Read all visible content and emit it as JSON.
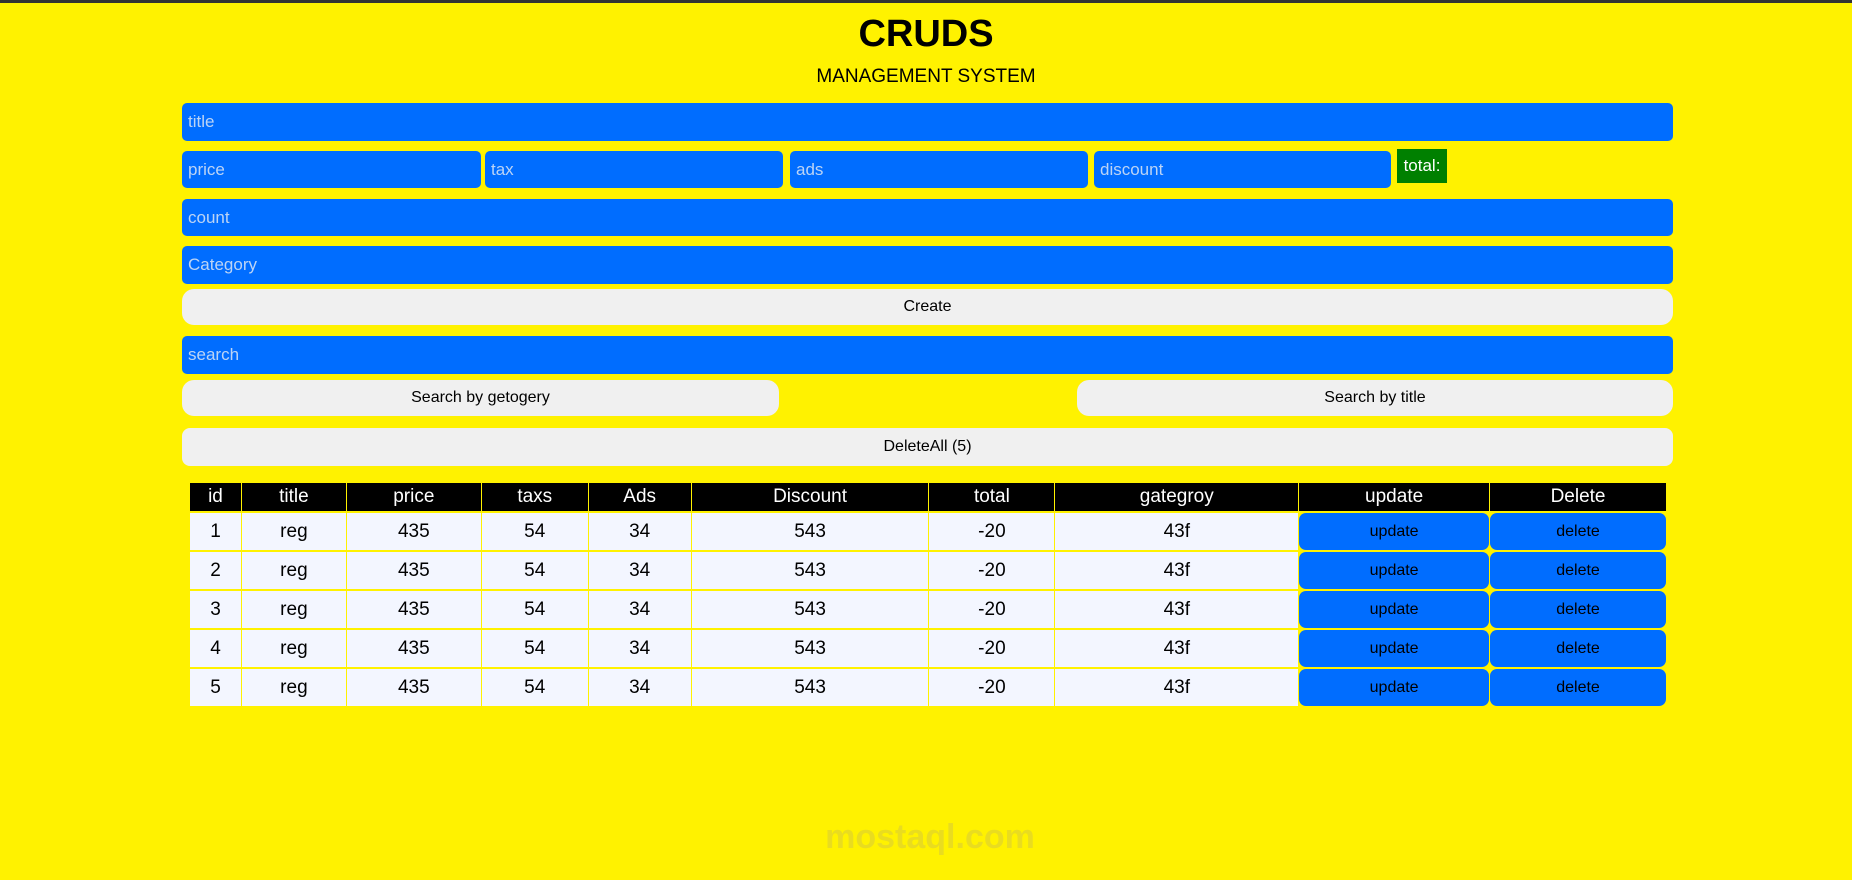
{
  "header": {
    "title": "CRUDS",
    "subtitle": "MANAGEMENT SYSTEM"
  },
  "form": {
    "title_placeholder": "title",
    "price_placeholder": "price",
    "tax_placeholder": "tax",
    "ads_placeholder": "ads",
    "discount_placeholder": "discount",
    "total_label": "total:",
    "count_placeholder": "count",
    "category_placeholder": "Category",
    "create_label": "Create"
  },
  "search": {
    "placeholder": "search",
    "by_category_label": "Search by getogery",
    "by_title_label": "Search by title"
  },
  "delete_all_label": "DeleteAll (5)",
  "table": {
    "headers": [
      "id",
      "title",
      "price",
      "taxs",
      "Ads",
      "Discount",
      "total",
      "gategroy",
      "update",
      "Delete"
    ],
    "rows": [
      {
        "id": "1",
        "title": "reg",
        "price": "435",
        "taxs": "54",
        "ads": "34",
        "discount": "543",
        "total": "-20",
        "category": "43f",
        "update": "update",
        "delete": "delete"
      },
      {
        "id": "2",
        "title": "reg",
        "price": "435",
        "taxs": "54",
        "ads": "34",
        "discount": "543",
        "total": "-20",
        "category": "43f",
        "update": "update",
        "delete": "delete"
      },
      {
        "id": "3",
        "title": "reg",
        "price": "435",
        "taxs": "54",
        "ads": "34",
        "discount": "543",
        "total": "-20",
        "category": "43f",
        "update": "update",
        "delete": "delete"
      },
      {
        "id": "4",
        "title": "reg",
        "price": "435",
        "taxs": "54",
        "ads": "34",
        "discount": "543",
        "total": "-20",
        "category": "43f",
        "update": "update",
        "delete": "delete"
      },
      {
        "id": "5",
        "title": "reg",
        "price": "435",
        "taxs": "54",
        "ads": "34",
        "discount": "543",
        "total": "-20",
        "category": "43f",
        "update": "update",
        "delete": "delete"
      }
    ]
  },
  "watermark": "mostaql.com",
  "colors": {
    "background": "#fff200",
    "input": "#006dff",
    "total": "#008000",
    "button": "#f0f0f0"
  }
}
